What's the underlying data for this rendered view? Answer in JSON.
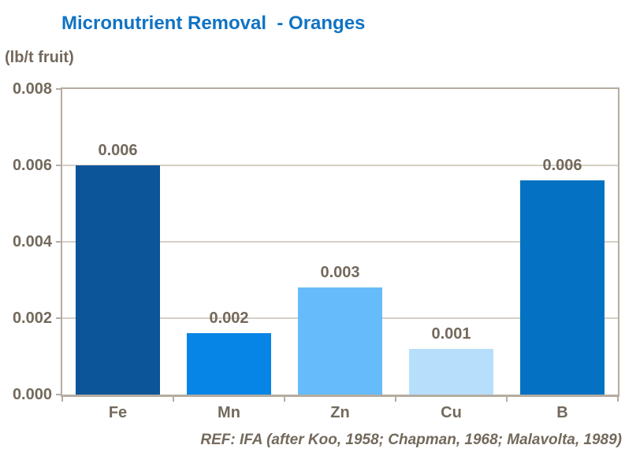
{
  "title": "Micronutrient Removal  - Oranges",
  "axis_unit_label": "(lb/t fruit)",
  "footer": "REF: IFA (after Koo, 1958; Chapman, 1968; Malavolta, 1989)",
  "colors": {
    "title_text": "#1173C4",
    "label_text": "#73695C",
    "axis_line": "#B5ACA0",
    "gridline": "#D5CFC5",
    "background": "#FFFFFF",
    "bar_colors": [
      "#0B5598",
      "#0685E6",
      "#66BCFA",
      "#B7DFFC",
      "#0571C2"
    ]
  },
  "chart_data": {
    "type": "bar",
    "title": "Micronutrient Removal  - Oranges",
    "categories": [
      "Fe",
      "Mn",
      "Zn",
      "Cu",
      "B"
    ],
    "values": [
      0.006,
      0.0016,
      0.0028,
      0.0012,
      0.0056
    ],
    "value_labels": [
      "0.006",
      "0.002",
      "0.003",
      "0.001",
      "0.006"
    ],
    "xlabel": "",
    "ylabel": "(lb/t fruit)",
    "ylim": [
      0,
      0.008
    ],
    "ytick_labels": [
      "0.008",
      "0.006",
      "0.004",
      "0.002",
      "0.000"
    ],
    "grid": true,
    "legend": false,
    "annotation": "REF: IFA (after Koo, 1958; Chapman, 1968; Malavolta, 1989)"
  }
}
